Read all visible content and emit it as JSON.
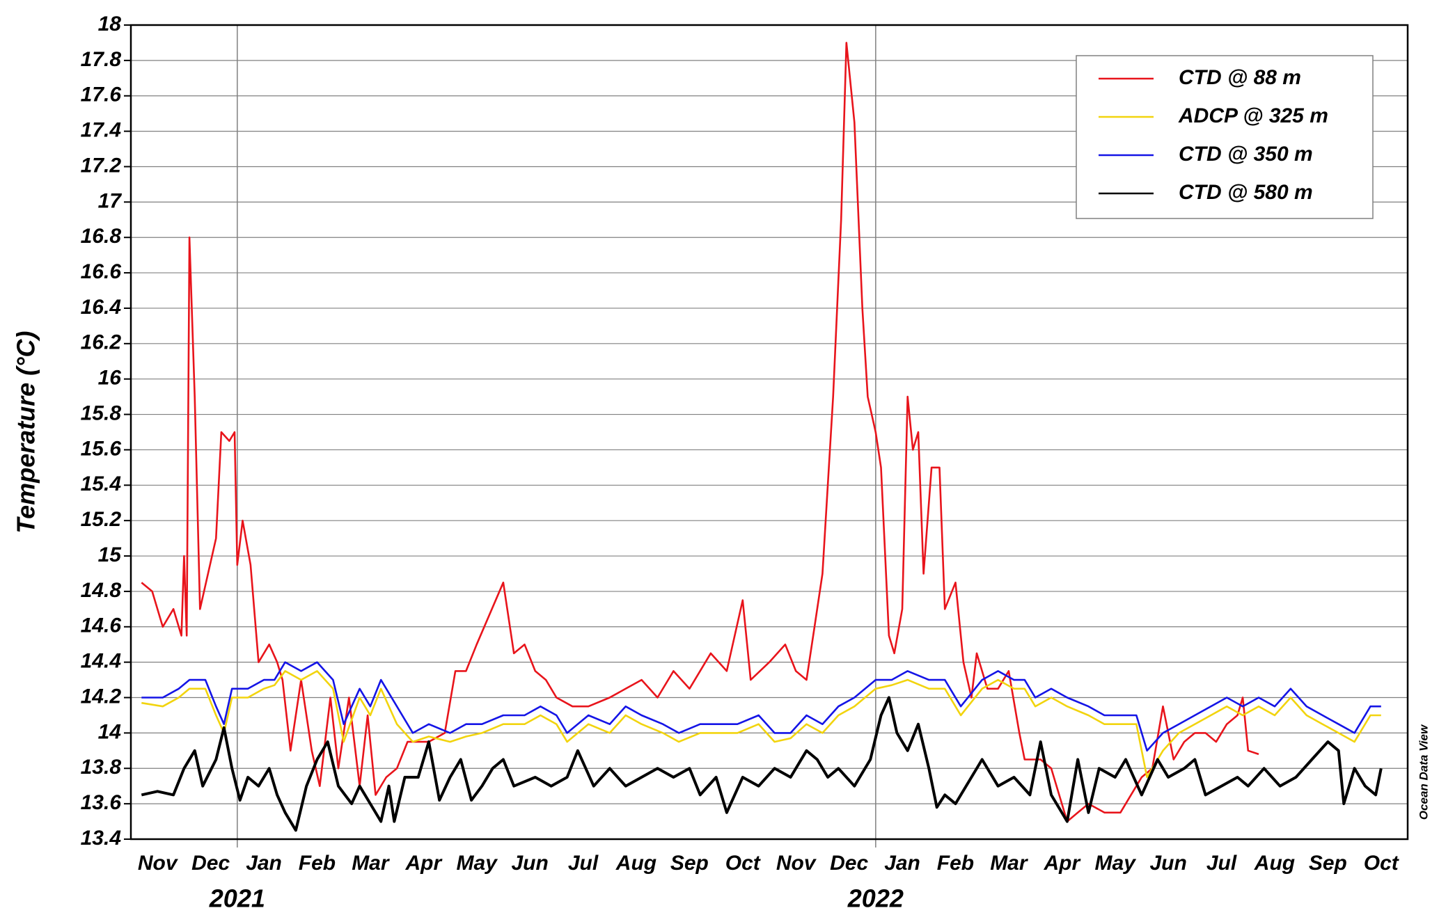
{
  "chart_data": {
    "type": "line",
    "y_label": "Temperature (°C)",
    "watermark": "Ocean Data View",
    "xlim": [
      0,
      24
    ],
    "xticks": [
      {
        "value": 0.5,
        "label": "Nov"
      },
      {
        "value": 1.5,
        "label": "Dec"
      },
      {
        "value": 2.5,
        "label": "Jan"
      },
      {
        "value": 3.5,
        "label": "Feb"
      },
      {
        "value": 4.5,
        "label": "Mar"
      },
      {
        "value": 5.5,
        "label": "Apr"
      },
      {
        "value": 6.5,
        "label": "May"
      },
      {
        "value": 7.5,
        "label": "Jun"
      },
      {
        "value": 8.5,
        "label": "Jul"
      },
      {
        "value": 9.5,
        "label": "Aug"
      },
      {
        "value": 10.5,
        "label": "Sep"
      },
      {
        "value": 11.5,
        "label": "Oct"
      },
      {
        "value": 12.5,
        "label": "Nov"
      },
      {
        "value": 13.5,
        "label": "Dec"
      },
      {
        "value": 14.5,
        "label": "Jan"
      },
      {
        "value": 15.5,
        "label": "Feb"
      },
      {
        "value": 16.5,
        "label": "Mar"
      },
      {
        "value": 17.5,
        "label": "Apr"
      },
      {
        "value": 18.5,
        "label": "May"
      },
      {
        "value": 19.5,
        "label": "Jun"
      },
      {
        "value": 20.5,
        "label": "Jul"
      },
      {
        "value": 21.5,
        "label": "Aug"
      },
      {
        "value": 22.5,
        "label": "Sep"
      },
      {
        "value": 23.5,
        "label": "Oct"
      }
    ],
    "year_labels": [
      {
        "value": 2,
        "label": "2021"
      },
      {
        "value": 14,
        "label": "2022"
      }
    ],
    "ylim": [
      13.4,
      18
    ],
    "yticks": [
      13.4,
      13.6,
      13.8,
      14,
      14.2,
      14.4,
      14.6,
      14.8,
      15,
      15.2,
      15.4,
      15.6,
      15.8,
      16,
      16.2,
      16.4,
      16.6,
      16.8,
      17,
      17.2,
      17.4,
      17.6,
      17.8,
      18
    ],
    "grid": true,
    "legend": "upper right",
    "series": [
      {
        "name": "CTD @ 88 m",
        "color": "#e8141b",
        "width": 2.6,
        "x": [
          0.2,
          0.4,
          0.6,
          0.8,
          0.95,
          1.0,
          1.05,
          1.1,
          1.2,
          1.3,
          1.45,
          1.6,
          1.7,
          1.85,
          1.95,
          2.0,
          2.1,
          2.25,
          2.4,
          2.6,
          2.75,
          2.85,
          3.0,
          3.2,
          3.4,
          3.55,
          3.75,
          3.9,
          4.1,
          4.3,
          4.45,
          4.6,
          4.8,
          5.0,
          5.2,
          5.4,
          5.6,
          5.9,
          6.1,
          6.3,
          6.5,
          7.0,
          7.2,
          7.4,
          7.6,
          7.8,
          8.0,
          8.3,
          8.6,
          9.0,
          9.3,
          9.6,
          9.9,
          10.2,
          10.5,
          10.9,
          11.2,
          11.5,
          11.65,
          12.0,
          12.3,
          12.5,
          12.7,
          12.85,
          13.0,
          13.2,
          13.35,
          13.45,
          13.6,
          13.75,
          13.85,
          14.0,
          14.1,
          14.25,
          14.35,
          14.5,
          14.6,
          14.7,
          14.8,
          14.9,
          15.05,
          15.2,
          15.3,
          15.5,
          15.65,
          15.8,
          15.9,
          16.1,
          16.3,
          16.5,
          16.7,
          16.8,
          17.1,
          17.3,
          17.6,
          17.8,
          18.0,
          18.3,
          18.6,
          18.8,
          19.0,
          19.2,
          19.4,
          19.6,
          19.8,
          20.0,
          20.2,
          20.4,
          20.6,
          20.8,
          20.9,
          21.0,
          21.2
        ],
        "values": [
          14.85,
          14.8,
          14.6,
          14.7,
          14.55,
          15.0,
          14.55,
          16.8,
          15.9,
          14.7,
          14.9,
          15.1,
          15.7,
          15.65,
          15.7,
          14.95,
          15.2,
          14.95,
          14.4,
          14.5,
          14.4,
          14.3,
          13.9,
          14.3,
          13.9,
          13.7,
          14.2,
          13.8,
          14.2,
          13.7,
          14.1,
          13.65,
          13.75,
          13.8,
          13.95,
          13.95,
          13.95,
          14.0,
          14.35,
          14.35,
          14.5,
          14.85,
          14.45,
          14.5,
          14.35,
          14.3,
          14.2,
          14.15,
          14.15,
          14.2,
          14.25,
          14.3,
          14.2,
          14.35,
          14.25,
          14.45,
          14.35,
          14.75,
          14.3,
          14.4,
          14.5,
          14.35,
          14.3,
          14.6,
          14.9,
          15.9,
          16.9,
          17.9,
          17.45,
          16.4,
          15.9,
          15.7,
          15.5,
          14.55,
          14.45,
          14.7,
          15.9,
          15.6,
          15.7,
          14.9,
          15.5,
          15.5,
          14.7,
          14.85,
          14.4,
          14.2,
          14.45,
          14.25,
          14.25,
          14.35,
          14.0,
          13.85,
          13.85,
          13.8,
          13.5,
          13.55,
          13.6,
          13.55,
          13.55,
          13.65,
          13.75,
          13.8,
          14.15,
          13.85,
          13.95,
          14.0,
          14.0,
          13.95,
          14.05,
          14.1,
          14.2,
          13.9,
          13.88
        ]
      },
      {
        "name": "ADCP @ 325 m",
        "color": "#f2d40e",
        "width": 2.6,
        "x": [
          0.2,
          0.6,
          0.9,
          1.1,
          1.4,
          1.6,
          1.75,
          1.9,
          2.2,
          2.5,
          2.7,
          2.9,
          3.2,
          3.5,
          3.8,
          4.0,
          4.3,
          4.5,
          4.7,
          5.0,
          5.3,
          5.6,
          6.0,
          6.3,
          6.6,
          7.0,
          7.4,
          7.7,
          8.0,
          8.2,
          8.6,
          9.0,
          9.3,
          9.6,
          10.0,
          10.3,
          10.7,
          11.0,
          11.4,
          11.8,
          12.1,
          12.4,
          12.7,
          13.0,
          13.3,
          13.6,
          14.0,
          14.3,
          14.6,
          15.0,
          15.3,
          15.6,
          16.0,
          16.3,
          16.6,
          16.8,
          17.0,
          17.3,
          17.6,
          18.0,
          18.3,
          18.6,
          18.9,
          19.1,
          19.4,
          19.7,
          20.0,
          20.3,
          20.6,
          20.9,
          21.2,
          21.5,
          21.8,
          22.1,
          22.4,
          22.7,
          23.0,
          23.3,
          23.5
        ],
        "values": [
          14.17,
          14.15,
          14.2,
          14.25,
          14.25,
          14.1,
          14.0,
          14.2,
          14.2,
          14.25,
          14.27,
          14.35,
          14.3,
          14.35,
          14.25,
          13.95,
          14.2,
          14.1,
          14.25,
          14.05,
          13.95,
          13.98,
          13.95,
          13.98,
          14.0,
          14.05,
          14.05,
          14.1,
          14.05,
          13.95,
          14.05,
          14.0,
          14.1,
          14.05,
          14.0,
          13.95,
          14.0,
          14.0,
          14.0,
          14.05,
          13.95,
          13.97,
          14.05,
          14.0,
          14.1,
          14.15,
          14.25,
          14.27,
          14.3,
          14.25,
          14.25,
          14.1,
          14.25,
          14.3,
          14.25,
          14.25,
          14.15,
          14.2,
          14.15,
          14.1,
          14.05,
          14.05,
          14.05,
          13.75,
          13.9,
          14.0,
          14.05,
          14.1,
          14.15,
          14.1,
          14.15,
          14.1,
          14.2,
          14.1,
          14.05,
          14.0,
          13.95,
          14.1,
          14.1
        ]
      },
      {
        "name": "CTD @ 350 m",
        "color": "#1414e6",
        "width": 2.6,
        "x": [
          0.2,
          0.6,
          0.9,
          1.1,
          1.4,
          1.6,
          1.75,
          1.9,
          2.2,
          2.5,
          2.7,
          2.9,
          3.2,
          3.5,
          3.8,
          4.0,
          4.3,
          4.5,
          4.7,
          5.0,
          5.3,
          5.6,
          6.0,
          6.3,
          6.6,
          7.0,
          7.4,
          7.7,
          8.0,
          8.2,
          8.6,
          9.0,
          9.3,
          9.6,
          10.0,
          10.3,
          10.7,
          11.0,
          11.4,
          11.8,
          12.1,
          12.4,
          12.7,
          13.0,
          13.3,
          13.6,
          14.0,
          14.3,
          14.6,
          15.0,
          15.3,
          15.6,
          16.0,
          16.3,
          16.6,
          16.8,
          17.0,
          17.3,
          17.6,
          18.0,
          18.3,
          18.6,
          18.9,
          19.1,
          19.4,
          19.7,
          20.0,
          20.3,
          20.6,
          20.9,
          21.2,
          21.5,
          21.8,
          22.1,
          22.4,
          22.7,
          23.0,
          23.3,
          23.5
        ],
        "values": [
          14.2,
          14.2,
          14.25,
          14.3,
          14.3,
          14.15,
          14.05,
          14.25,
          14.25,
          14.3,
          14.3,
          14.4,
          14.35,
          14.4,
          14.3,
          14.05,
          14.25,
          14.15,
          14.3,
          14.15,
          14.0,
          14.05,
          14.0,
          14.05,
          14.05,
          14.1,
          14.1,
          14.15,
          14.1,
          14.0,
          14.1,
          14.05,
          14.15,
          14.1,
          14.05,
          14.0,
          14.05,
          14.05,
          14.05,
          14.1,
          14.0,
          14.0,
          14.1,
          14.05,
          14.15,
          14.2,
          14.3,
          14.3,
          14.35,
          14.3,
          14.3,
          14.15,
          14.3,
          14.35,
          14.3,
          14.3,
          14.2,
          14.25,
          14.2,
          14.15,
          14.1,
          14.1,
          14.1,
          13.9,
          14.0,
          14.05,
          14.1,
          14.15,
          14.2,
          14.15,
          14.2,
          14.15,
          14.25,
          14.15,
          14.1,
          14.05,
          14.0,
          14.15,
          14.15
        ]
      },
      {
        "name": "CTD @ 580 m",
        "color": "#000000",
        "width": 4,
        "x": [
          0.2,
          0.5,
          0.8,
          1.0,
          1.2,
          1.35,
          1.6,
          1.75,
          1.9,
          2.05,
          2.2,
          2.4,
          2.6,
          2.75,
          2.9,
          3.1,
          3.3,
          3.5,
          3.7,
          3.9,
          4.15,
          4.3,
          4.5,
          4.7,
          4.85,
          4.95,
          5.15,
          5.4,
          5.6,
          5.8,
          6.0,
          6.2,
          6.4,
          6.6,
          6.8,
          7.0,
          7.2,
          7.6,
          7.9,
          8.2,
          8.4,
          8.7,
          9.0,
          9.3,
          9.6,
          9.9,
          10.2,
          10.5,
          10.7,
          11.0,
          11.2,
          11.5,
          11.8,
          12.1,
          12.4,
          12.7,
          12.9,
          13.1,
          13.3,
          13.6,
          13.9,
          14.1,
          14.25,
          14.4,
          14.6,
          14.8,
          15.0,
          15.15,
          15.3,
          15.5,
          15.8,
          16.0,
          16.3,
          16.6,
          16.9,
          17.1,
          17.3,
          17.6,
          17.8,
          18.0,
          18.2,
          18.5,
          18.7,
          19.0,
          19.3,
          19.5,
          19.8,
          20.0,
          20.2,
          20.5,
          20.8,
          21.0,
          21.3,
          21.6,
          21.9,
          22.2,
          22.5,
          22.7,
          22.8,
          23.0,
          23.2,
          23.4,
          23.5
        ],
        "values": [
          13.65,
          13.67,
          13.65,
          13.8,
          13.9,
          13.7,
          13.85,
          14.03,
          13.8,
          13.62,
          13.75,
          13.7,
          13.8,
          13.65,
          13.55,
          13.45,
          13.7,
          13.85,
          13.95,
          13.7,
          13.6,
          13.7,
          13.6,
          13.5,
          13.7,
          13.5,
          13.75,
          13.75,
          13.95,
          13.62,
          13.75,
          13.85,
          13.62,
          13.7,
          13.8,
          13.85,
          13.7,
          13.75,
          13.7,
          13.75,
          13.9,
          13.7,
          13.8,
          13.7,
          13.75,
          13.8,
          13.75,
          13.8,
          13.65,
          13.75,
          13.55,
          13.75,
          13.7,
          13.8,
          13.75,
          13.9,
          13.85,
          13.75,
          13.8,
          13.7,
          13.85,
          14.1,
          14.2,
          14.0,
          13.9,
          14.05,
          13.8,
          13.58,
          13.65,
          13.6,
          13.75,
          13.85,
          13.7,
          13.75,
          13.65,
          13.95,
          13.65,
          13.5,
          13.85,
          13.55,
          13.8,
          13.75,
          13.85,
          13.65,
          13.85,
          13.75,
          13.8,
          13.85,
          13.65,
          13.7,
          13.75,
          13.7,
          13.8,
          13.7,
          13.75,
          13.85,
          13.95,
          13.9,
          13.6,
          13.8,
          13.7,
          13.65,
          13.8
        ]
      }
    ]
  }
}
